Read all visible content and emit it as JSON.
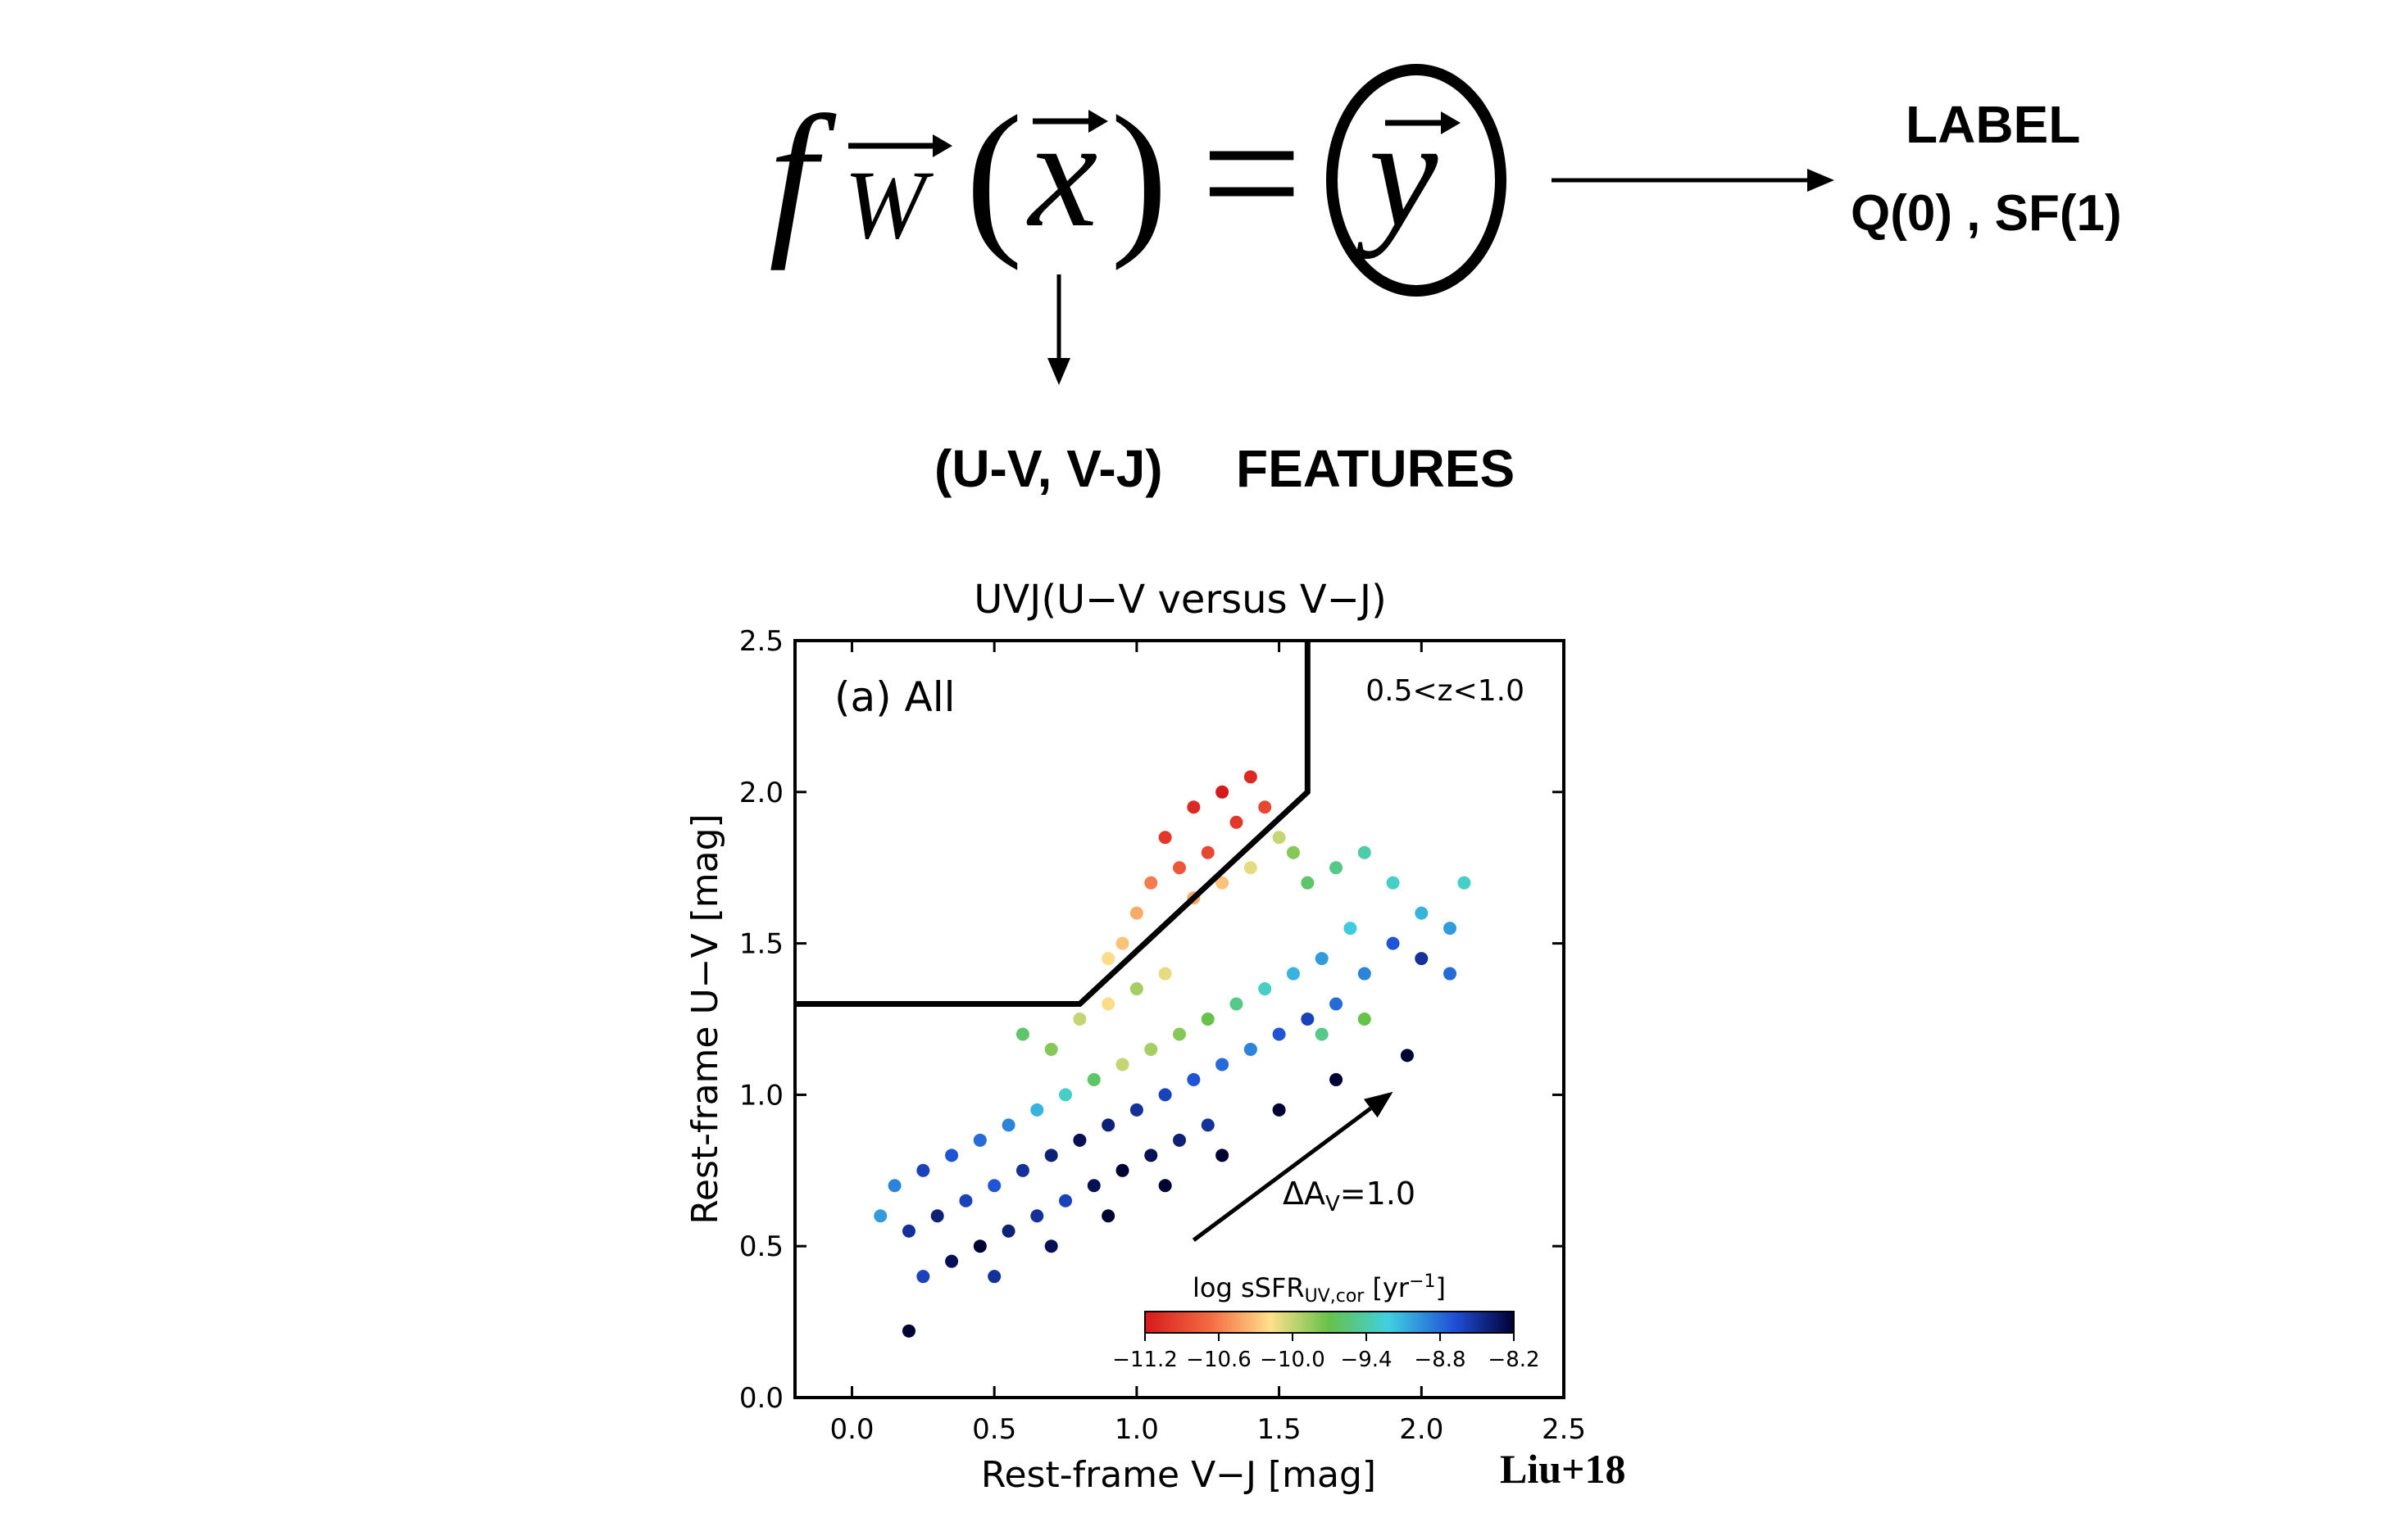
{
  "formula": {
    "f": "f",
    "w": "W",
    "x": "x",
    "y": "y",
    "equals": "="
  },
  "label_block": {
    "title": "LABEL",
    "classes": "Q(0) , SF(1)"
  },
  "features_block": {
    "vars": "(U-V, V-J)",
    "title": "FEATURES"
  },
  "credit": "Liu+18",
  "chart_data": {
    "type": "scatter",
    "title": "UVJ(U−V versus V−J)",
    "xlabel": "Rest-frame V−J [mag]",
    "ylabel": "Rest-frame U−V [mag]",
    "xlim": [
      -0.2,
      2.5
    ],
    "ylim": [
      0.0,
      2.5
    ],
    "xticks": [
      "0.0",
      "0.5",
      "1.0",
      "1.5",
      "2.0",
      "2.5"
    ],
    "yticks": [
      "0.0",
      "0.5",
      "1.0",
      "1.5",
      "2.0",
      "2.5"
    ],
    "panel_label": "(a)  All",
    "redshift_label": "0.5<z<1.0",
    "boundary": [
      [
        -0.2,
        1.3
      ],
      [
        0.8,
        1.3
      ],
      [
        1.6,
        2.0
      ],
      [
        1.6,
        2.5
      ]
    ],
    "reddening_arrow": {
      "from": [
        1.2,
        0.52
      ],
      "to": [
        1.9,
        1.01
      ],
      "label": "ΔA",
      "label_sub": "V",
      "label_tail": "=1.0"
    },
    "colorbar": {
      "label": "log sSFR",
      "label_sub": "UV,cor",
      "label_unit": " [yr",
      "label_sup": "−1",
      "label_end": "]",
      "ticks": [
        "−11.2",
        "−10.6",
        "−10.0",
        "−9.4",
        "−8.8",
        "−8.2"
      ],
      "range": [
        -11.2,
        -8.2
      ],
      "colormap": "jet",
      "legend_position": "lower-right"
    },
    "scatter_points": [
      [
        1.1,
        1.85,
        -11.0
      ],
      [
        1.2,
        1.95,
        -11.1
      ],
      [
        1.3,
        2.0,
        -11.2
      ],
      [
        1.35,
        1.9,
        -11.0
      ],
      [
        1.25,
        1.8,
        -10.9
      ],
      [
        1.15,
        1.75,
        -10.8
      ],
      [
        1.05,
        1.7,
        -10.6
      ],
      [
        1.4,
        2.05,
        -11.1
      ],
      [
        1.45,
        1.95,
        -10.9
      ],
      [
        1.0,
        1.6,
        -10.4
      ],
      [
        0.95,
        1.5,
        -10.3
      ],
      [
        0.9,
        1.45,
        -10.2
      ],
      [
        1.2,
        1.65,
        -10.4
      ],
      [
        1.3,
        1.7,
        -10.3
      ],
      [
        1.4,
        1.75,
        -10.1
      ],
      [
        1.5,
        1.85,
        -10.0
      ],
      [
        1.55,
        1.8,
        -9.8
      ],
      [
        1.6,
        1.7,
        -9.6
      ],
      [
        1.7,
        1.75,
        -9.5
      ],
      [
        1.8,
        1.8,
        -9.4
      ],
      [
        1.9,
        1.7,
        -9.3
      ],
      [
        2.0,
        1.6,
        -9.1
      ],
      [
        2.1,
        1.55,
        -9.0
      ],
      [
        2.15,
        1.7,
        -9.3
      ],
      [
        1.75,
        1.55,
        -9.2
      ],
      [
        1.65,
        1.45,
        -9.0
      ],
      [
        1.55,
        1.4,
        -9.1
      ],
      [
        1.45,
        1.35,
        -9.3
      ],
      [
        1.35,
        1.3,
        -9.5
      ],
      [
        1.25,
        1.25,
        -9.7
      ],
      [
        1.15,
        1.2,
        -9.8
      ],
      [
        1.05,
        1.15,
        -9.9
      ],
      [
        0.95,
        1.1,
        -10.0
      ],
      [
        0.85,
        1.05,
        -9.6
      ],
      [
        0.75,
        1.0,
        -9.3
      ],
      [
        0.65,
        0.95,
        -9.1
      ],
      [
        0.55,
        0.9,
        -8.9
      ],
      [
        0.45,
        0.85,
        -8.8
      ],
      [
        0.35,
        0.8,
        -8.7
      ],
      [
        0.25,
        0.75,
        -8.6
      ],
      [
        0.15,
        0.7,
        -8.9
      ],
      [
        0.1,
        0.6,
        -9.0
      ],
      [
        0.2,
        0.55,
        -8.5
      ],
      [
        0.3,
        0.6,
        -8.4
      ],
      [
        0.4,
        0.65,
        -8.6
      ],
      [
        0.5,
        0.7,
        -8.7
      ],
      [
        0.6,
        0.75,
        -8.5
      ],
      [
        0.7,
        0.8,
        -8.4
      ],
      [
        0.8,
        0.85,
        -8.3
      ],
      [
        0.9,
        0.9,
        -8.4
      ],
      [
        1.0,
        0.95,
        -8.5
      ],
      [
        1.1,
        1.0,
        -8.6
      ],
      [
        1.2,
        1.05,
        -8.7
      ],
      [
        1.3,
        1.1,
        -8.8
      ],
      [
        1.4,
        1.15,
        -8.9
      ],
      [
        1.5,
        1.2,
        -8.7
      ],
      [
        1.6,
        1.25,
        -8.6
      ],
      [
        1.7,
        1.3,
        -8.8
      ],
      [
        1.8,
        1.4,
        -8.9
      ],
      [
        1.9,
        1.5,
        -8.7
      ],
      [
        2.0,
        1.45,
        -8.5
      ],
      [
        2.1,
        1.4,
        -8.8
      ],
      [
        0.35,
        0.45,
        -8.3
      ],
      [
        0.45,
        0.5,
        -8.2
      ],
      [
        0.55,
        0.55,
        -8.4
      ],
      [
        0.65,
        0.6,
        -8.5
      ],
      [
        0.75,
        0.65,
        -8.6
      ],
      [
        0.85,
        0.7,
        -8.3
      ],
      [
        0.95,
        0.75,
        -8.2
      ],
      [
        1.05,
        0.8,
        -8.3
      ],
      [
        1.15,
        0.85,
        -8.4
      ],
      [
        1.25,
        0.9,
        -8.5
      ],
      [
        0.25,
        0.4,
        -8.6
      ],
      [
        0.5,
        0.4,
        -8.5
      ],
      [
        0.7,
        0.5,
        -8.3
      ],
      [
        0.9,
        0.6,
        -8.2
      ],
      [
        1.1,
        0.7,
        -8.2
      ],
      [
        1.3,
        0.8,
        -8.2
      ],
      [
        1.5,
        0.95,
        -8.2
      ],
      [
        1.7,
        1.05,
        -8.2
      ],
      [
        0.2,
        0.22,
        -8.2
      ],
      [
        1.95,
        1.13,
        -8.2
      ],
      [
        0.6,
        1.2,
        -9.6
      ],
      [
        0.7,
        1.15,
        -9.8
      ],
      [
        0.8,
        1.25,
        -10.0
      ],
      [
        0.9,
        1.3,
        -10.2
      ],
      [
        1.0,
        1.35,
        -9.9
      ],
      [
        1.1,
        1.4,
        -10.1
      ],
      [
        1.8,
        1.25,
        -9.7
      ],
      [
        1.65,
        1.2,
        -9.5
      ]
    ]
  }
}
